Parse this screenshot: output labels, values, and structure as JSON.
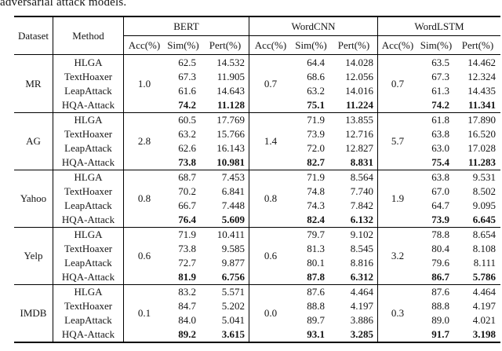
{
  "caption": "adversarial attack models.",
  "table": {
    "header": {
      "dataset": "Dataset",
      "method": "Method"
    },
    "model_groups": [
      "BERT",
      "WordCNN",
      "WordLSTM"
    ],
    "sub_headers": [
      "Acc(%)",
      "Sim(%)",
      "Pert(%)"
    ],
    "groups": [
      {
        "dataset": "MR",
        "methods": [
          "HLGA",
          "TextHoaxer",
          "LeapAttack",
          "HQA-Attack"
        ],
        "bert": {
          "acc": "1.0",
          "sim": [
            "62.5",
            "67.3",
            "61.6",
            "74.2"
          ],
          "pert": [
            "14.532",
            "11.905",
            "14.643",
            "11.128"
          ]
        },
        "wordcnn": {
          "acc": "0.7",
          "sim": [
            "64.4",
            "68.6",
            "63.2",
            "75.1"
          ],
          "pert": [
            "14.028",
            "12.056",
            "14.016",
            "11.224"
          ]
        },
        "wordlstm": {
          "acc": "0.7",
          "sim": [
            "63.5",
            "67.3",
            "61.3",
            "74.2"
          ],
          "pert": [
            "14.462",
            "12.324",
            "14.435",
            "11.341"
          ]
        }
      },
      {
        "dataset": "AG",
        "methods": [
          "HLGA",
          "TextHoaxer",
          "LeapAttack",
          "HQA-Attack"
        ],
        "bert": {
          "acc": "2.8",
          "sim": [
            "60.5",
            "63.2",
            "62.6",
            "73.8"
          ],
          "pert": [
            "17.769",
            "15.766",
            "16.143",
            "10.981"
          ]
        },
        "wordcnn": {
          "acc": "1.4",
          "sim": [
            "71.9",
            "73.9",
            "72.0",
            "82.7"
          ],
          "pert": [
            "13.855",
            "12.716",
            "12.827",
            "8.831"
          ]
        },
        "wordlstm": {
          "acc": "5.7",
          "sim": [
            "61.8",
            "63.8",
            "63.0",
            "75.4"
          ],
          "pert": [
            "17.890",
            "16.520",
            "17.028",
            "11.283"
          ]
        }
      },
      {
        "dataset": "Yahoo",
        "methods": [
          "HLGA",
          "TextHoaxer",
          "LeapAttack",
          "HQA-Attack"
        ],
        "bert": {
          "acc": "0.8",
          "sim": [
            "68.7",
            "70.2",
            "66.7",
            "76.4"
          ],
          "pert": [
            "7.453",
            "6.841",
            "7.448",
            "5.609"
          ]
        },
        "wordcnn": {
          "acc": "0.8",
          "sim": [
            "71.9",
            "74.8",
            "74.3",
            "82.4"
          ],
          "pert": [
            "8.564",
            "7.740",
            "7.842",
            "6.132"
          ]
        },
        "wordlstm": {
          "acc": "1.9",
          "sim": [
            "63.8",
            "67.0",
            "64.7",
            "73.9"
          ],
          "pert": [
            "9.531",
            "8.502",
            "9.095",
            "6.645"
          ]
        }
      },
      {
        "dataset": "Yelp",
        "methods": [
          "HLGA",
          "TextHoaxer",
          "LeapAttack",
          "HQA-Attack"
        ],
        "bert": {
          "acc": "0.6",
          "sim": [
            "71.9",
            "73.8",
            "72.7",
            "81.9"
          ],
          "pert": [
            "10.411",
            "9.585",
            "9.877",
            "6.756"
          ]
        },
        "wordcnn": {
          "acc": "0.6",
          "sim": [
            "79.7",
            "81.3",
            "80.1",
            "87.8"
          ],
          "pert": [
            "9.102",
            "8.545",
            "8.816",
            "6.312"
          ]
        },
        "wordlstm": {
          "acc": "3.2",
          "sim": [
            "78.8",
            "80.4",
            "79.6",
            "86.7"
          ],
          "pert": [
            "8.654",
            "8.108",
            "8.111",
            "5.786"
          ]
        }
      },
      {
        "dataset": "IMDB",
        "methods": [
          "HLGA",
          "TextHoaxer",
          "LeapAttack",
          "HQA-Attack"
        ],
        "bert": {
          "acc": "0.1",
          "sim": [
            "83.2",
            "84.7",
            "84.0",
            "89.2"
          ],
          "pert": [
            "5.571",
            "5.202",
            "5.041",
            "3.615"
          ]
        },
        "wordcnn": {
          "acc": "0.0",
          "sim": [
            "87.6",
            "88.8",
            "89.7",
            "93.1"
          ],
          "pert": [
            "4.464",
            "4.197",
            "3.886",
            "3.285"
          ]
        },
        "wordlstm": {
          "acc": "0.3",
          "sim": [
            "87.6",
            "88.8",
            "89.0",
            "91.7"
          ],
          "pert": [
            "4.464",
            "4.197",
            "4.021",
            "3.198"
          ]
        }
      }
    ]
  }
}
